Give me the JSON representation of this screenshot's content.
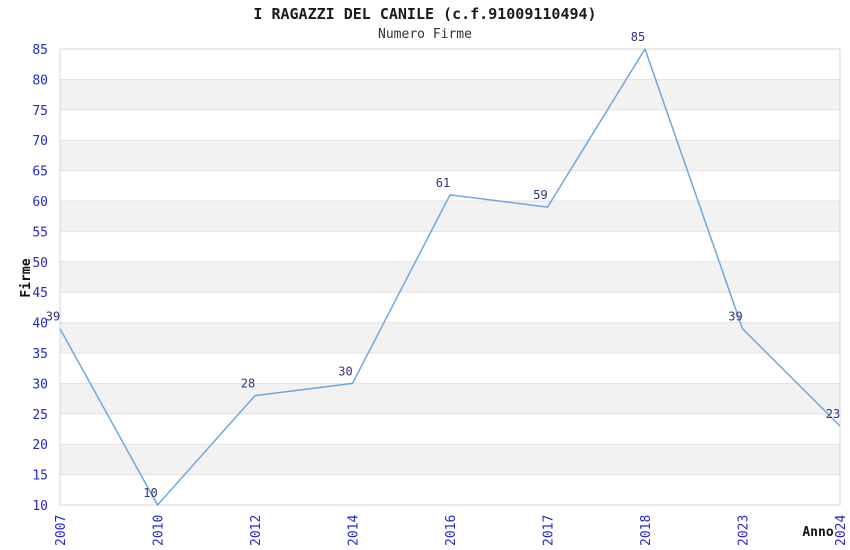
{
  "page": {
    "background": "#ffffff"
  },
  "chart_data": {
    "type": "line",
    "title": "I RAGAZZI DEL CANILE (c.f.91009110494)",
    "subtitle": "Numero Firme",
    "xlabel": "Anno",
    "ylabel": "Firme",
    "categories": [
      "2007",
      "2010",
      "2012",
      "2014",
      "2016",
      "2017",
      "2018",
      "2023",
      "2024"
    ],
    "series": [
      {
        "name": "Numero Firme",
        "values": [
          39,
          10,
          28,
          30,
          61,
          59,
          85,
          39,
          23
        ]
      }
    ],
    "ylim": [
      10,
      85
    ],
    "ytick_step": 5,
    "yticks": [
      10,
      15,
      20,
      25,
      30,
      35,
      40,
      45,
      50,
      55,
      60,
      65,
      70,
      75,
      80,
      85
    ],
    "grid": true,
    "striped_bands": true,
    "legend_position": "none",
    "colors": {
      "line": "#6fa8dc",
      "tick_label": "#2727cc",
      "data_label": "#333380",
      "band_gray": "#f2f2f2",
      "gridline": "#e2e2e2",
      "plot_border": "#d4d4d4",
      "title": "#1a1a1a",
      "subtitle": "#333333",
      "axis_title": "#111111",
      "background": "#ffffff"
    }
  }
}
